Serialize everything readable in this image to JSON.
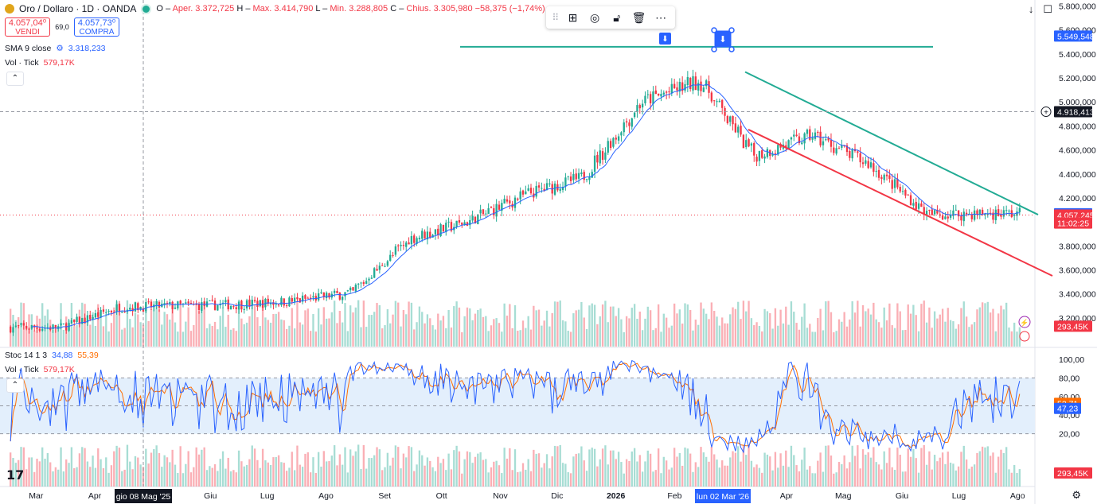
{
  "header": {
    "symbol": "Oro / Dollaro · 1D · OANDA",
    "open_label": "O",
    "open": "Aper. 3.372,725",
    "high_label": "H",
    "high": "Max. 3.414,790",
    "low_label": "L",
    "low": "Min. 3.288,805",
    "close_label": "C",
    "close": "Chius. 3.305,980",
    "change": "−58,375 (−1,74%)"
  },
  "trade": {
    "sell_price": "4.057,04⁰",
    "sell_label": "VENDI",
    "spread": "69,0",
    "buy_price": "4.057,73⁰",
    "buy_label": "COMPRA"
  },
  "indicators": {
    "sma_label": "SMA 9 close",
    "sma_value": "3.318,233",
    "vol_label": "Vol · Tick",
    "vol_value": "579,17K",
    "stoch_label": "Stoc 14 1 3",
    "stoch_k": "34,88",
    "stoch_d": "55,39",
    "vol2_label": "Vol · Tick",
    "vol2_value": "579,17K"
  },
  "toolbar": {
    "icons": [
      "drag-grip-icon",
      "object-tree-icon",
      "visibility-icon",
      "lock-icon",
      "delete-icon",
      "more-icon"
    ]
  },
  "colors": {
    "up": "#22ab94",
    "down": "#f23645",
    "sma": "#2962ff",
    "trend_green": "#22ab94",
    "trend_red": "#f23645",
    "stoch_k": "#2962ff",
    "stoch_d": "#ff6d00",
    "stoch_band": "#e3effc"
  },
  "price_axis": {
    "ticks": [
      "5.800,000",
      "5.600,000",
      "5.400,000",
      "5.200,000",
      "5.000,000",
      "4.800,000",
      "4.600,000",
      "4.400,000",
      "4.200,000",
      "3.800,000",
      "3.600,000",
      "3.400,000",
      "3.200,000"
    ],
    "labels": [
      {
        "text": "5.549,548",
        "price": 5549.548,
        "color": "#2962ff"
      },
      {
        "text": "4.918,413",
        "price": 4918.413,
        "color": "#131722"
      },
      {
        "text": "4.067,722",
        "price": 4067.722,
        "color": "#2962ff"
      },
      {
        "text": "4.057,245",
        "price": 4057.245,
        "color": "#f23645"
      },
      {
        "text": "11:02:25",
        "price": 3990,
        "color": "#f23645"
      },
      {
        "text": "293,45K",
        "price": 3130,
        "color": "#f23645"
      }
    ]
  },
  "stoch_axis": {
    "ticks": [
      "100,00",
      "80,00",
      "60,00",
      "40,00",
      "20,00"
    ],
    "labels": [
      {
        "text": "52,71",
        "value": 52.71,
        "color": "#ff6d00"
      },
      {
        "text": "47,23",
        "value": 47.23,
        "color": "#2962ff"
      },
      {
        "text": "293,45K",
        "value": 0,
        "color": "#f23645"
      }
    ]
  },
  "time_axis": {
    "labels": [
      "Mar",
      "Apr",
      "Mag",
      "Giu",
      "Lug",
      "Ago",
      "Set",
      "Ott",
      "Nov",
      "Dic",
      "2026",
      "Feb",
      "Mar",
      "Apr",
      "Mag",
      "Giu",
      "Lug",
      "Ago"
    ],
    "cursor_label": "gio 08 Mag '25",
    "selected_label": "lun 02 Mar '26"
  },
  "chart_data": {
    "type": "candlestick",
    "title": "Oro / Dollaro · 1D · OANDA",
    "x_range": [
      "2025-03",
      "2026-08"
    ],
    "ylim": [
      3100,
      5800
    ],
    "monthly_close": [
      {
        "month": "2025-03",
        "close": 3120
      },
      {
        "month": "2025-04",
        "close": 3290
      },
      {
        "month": "2025-05",
        "close": 3300
      },
      {
        "month": "2025-06",
        "close": 3310
      },
      {
        "month": "2025-07",
        "close": 3340
      },
      {
        "month": "2025-08",
        "close": 3410
      },
      {
        "month": "2025-09",
        "close": 3860
      },
      {
        "month": "2025-10",
        "close": 4000
      },
      {
        "month": "2025-11",
        "close": 4230
      },
      {
        "month": "2025-12",
        "close": 4370
      },
      {
        "month": "2026-01",
        "close": 5000
      },
      {
        "month": "2026-02",
        "close": 5180
      },
      {
        "month": "2026-03",
        "close": 4550
      },
      {
        "month": "2026-04",
        "close": 4720
      },
      {
        "month": "2026-05",
        "close": 4480
      },
      {
        "month": "2026-06",
        "close": 4060
      },
      {
        "month": "2026-07",
        "close": 4070
      }
    ],
    "horizontal_line": 5460,
    "trend_upper": [
      {
        "x": "2026-03-02",
        "y": 5250
      },
      {
        "x": "2026-08-01",
        "y": 4060
      }
    ],
    "trend_lower": [
      {
        "x": "2026-03-02",
        "y": 4770
      },
      {
        "x": "2026-08-20",
        "y": 3550
      }
    ],
    "stochastic": {
      "k_last": 34.88,
      "d_last": 55.39,
      "upper_band": 80,
      "lower_band": 20
    }
  }
}
